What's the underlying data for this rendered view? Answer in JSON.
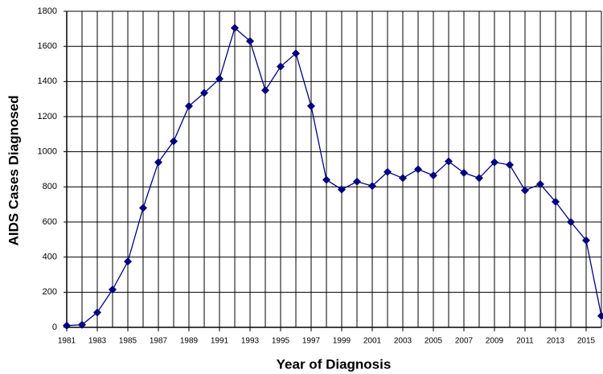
{
  "chart_data": {
    "type": "line",
    "x_label": "Year of Diagnosis",
    "y_label": "AIDS Cases Diagnosed",
    "x": [
      1981,
      1982,
      1983,
      1984,
      1985,
      1986,
      1987,
      1988,
      1989,
      1990,
      1991,
      1992,
      1993,
      1994,
      1995,
      1996,
      1997,
      1998,
      1999,
      2000,
      2001,
      2002,
      2003,
      2004,
      2005,
      2006,
      2007,
      2008,
      2009,
      2010,
      2011,
      2012,
      2013,
      2014,
      2015,
      2016
    ],
    "series": [
      {
        "name": "AIDS Cases Diagnosed",
        "color": "#000080",
        "values": [
          10,
          15,
          85,
          215,
          375,
          680,
          940,
          1060,
          1260,
          1335,
          1415,
          1705,
          1630,
          1350,
          1485,
          1560,
          1260,
          840,
          785,
          830,
          805,
          885,
          850,
          900,
          865,
          945,
          880,
          850,
          940,
          925,
          780,
          815,
          715,
          600,
          495,
          65
        ]
      }
    ],
    "xlim": [
      1981,
      2016
    ],
    "xticks": [
      1981,
      1983,
      1985,
      1987,
      1989,
      1991,
      1993,
      1995,
      1997,
      1999,
      2001,
      2003,
      2005,
      2007,
      2009,
      2011,
      2013,
      2015
    ],
    "ylim": [
      0,
      1800
    ],
    "yticks": [
      0,
      200,
      400,
      600,
      800,
      1000,
      1200,
      1400,
      1600,
      1800
    ],
    "grid": true
  }
}
